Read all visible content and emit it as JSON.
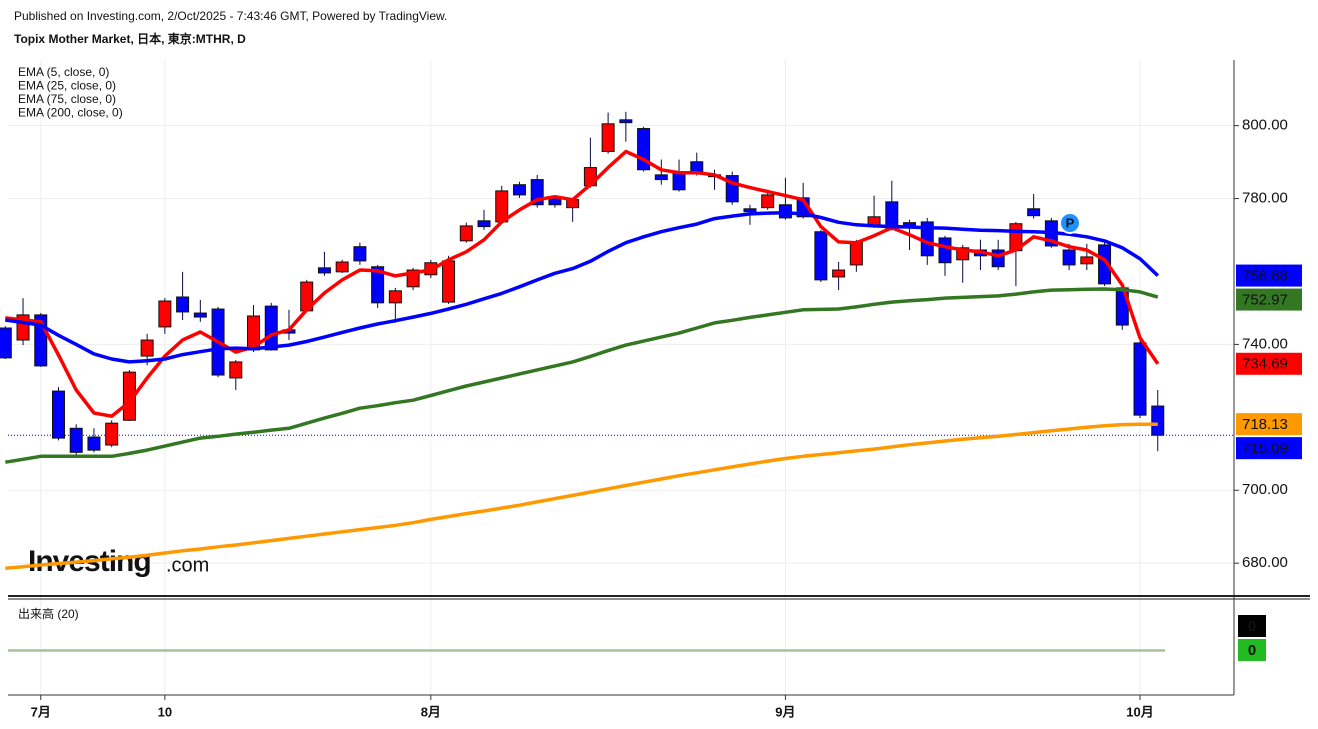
{
  "header": {
    "published": "Published on Investing.com, 2/Oct/2025 - 7:43:46 GMT, Powered by TradingView.",
    "symbol": "Topix Mother Market, 日本, 東京:MTHR, D"
  },
  "chart_data": {
    "type": "candlestick",
    "categories": [
      null,
      null,
      "7月",
      null,
      null,
      null,
      null,
      null,
      null,
      "10",
      null,
      null,
      null,
      null,
      null,
      null,
      null,
      null,
      null,
      null,
      null,
      null,
      null,
      null,
      "8月",
      null,
      null,
      null,
      null,
      null,
      null,
      null,
      null,
      null,
      null,
      null,
      null,
      null,
      null,
      null,
      null,
      null,
      null,
      null,
      "9月",
      null,
      null,
      null,
      null,
      null,
      null,
      null,
      null,
      null,
      null,
      null,
      null,
      null,
      null,
      null,
      null,
      null,
      null,
      null,
      "10月",
      null
    ],
    "open": [
      744.5,
      741.2,
      748.1,
      727.2,
      717.0,
      714.6,
      712.4,
      719.2,
      736.8,
      744.8,
      753.0,
      748.6,
      749.7,
      730.8,
      738.5,
      750.5,
      744.0,
      749.2,
      761.0,
      759.9,
      766.8,
      761.3,
      751.4,
      755.8,
      759.1,
      751.6,
      768.4,
      773.9,
      773.6,
      783.8,
      785.2,
      780.2,
      777.5,
      783.5,
      792.9,
      801.6,
      799.2,
      786.5,
      787.4,
      790.1,
      786.5,
      786.3,
      777.2,
      777.5,
      778.3,
      780.2,
      770.9,
      758.5,
      761.8,
      772.5,
      779.1,
      773.4,
      773.6,
      769.2,
      763.2,
      765.9,
      765.9,
      765.7,
      777.2,
      773.9,
      765.9,
      762.1,
      767.3,
      755.5,
      740.4,
      723.1
    ],
    "high": [
      745.0,
      752.7,
      748.6,
      728.3,
      718.1,
      717.0,
      719.2,
      733.0,
      742.9,
      752.7,
      759.9,
      752.2,
      750.3,
      735.7,
      750.8,
      751.4,
      749.5,
      757.7,
      765.4,
      763.2,
      767.9,
      761.8,
      755.5,
      761.0,
      763.2,
      764.3,
      773.4,
      776.9,
      783.5,
      784.6,
      786.5,
      780.8,
      780.2,
      796.7,
      803.6,
      803.8,
      799.7,
      790.7,
      790.7,
      792.6,
      787.9,
      787.4,
      778.3,
      782.4,
      785.7,
      784.3,
      771.4,
      762.6,
      768.7,
      780.8,
      784.9,
      774.2,
      774.7,
      769.8,
      767.3,
      768.7,
      768.7,
      773.6,
      781.3,
      774.7,
      767.6,
      767.6,
      768.1,
      756.3,
      741.2,
      727.5
    ],
    "low": [
      736.0,
      739.8,
      733.8,
      713.7,
      709.6,
      710.4,
      711.8,
      719.0,
      734.3,
      742.9,
      746.7,
      746.2,
      731.0,
      727.5,
      737.9,
      738.3,
      741.2,
      749.0,
      758.8,
      759.6,
      761.8,
      750.0,
      745.9,
      754.9,
      758.2,
      751.1,
      767.9,
      771.4,
      773.1,
      780.2,
      777.5,
      777.5,
      773.6,
      783.0,
      792.3,
      795.6,
      787.4,
      783.8,
      781.9,
      786.3,
      782.4,
      778.3,
      772.8,
      776.9,
      774.2,
      774.5,
      757.1,
      754.9,
      759.9,
      772.0,
      771.2,
      765.9,
      761.8,
      758.8,
      756.9,
      760.4,
      760.4,
      756.0,
      774.5,
      766.5,
      760.4,
      760.4,
      756.0,
      744.0,
      719.8,
      710.7
    ],
    "close": [
      736.3,
      748.1,
      734.1,
      714.3,
      710.4,
      711.0,
      718.4,
      732.4,
      741.2,
      751.9,
      748.9,
      747.5,
      731.6,
      735.2,
      747.8,
      738.5,
      743.1,
      757.1,
      759.6,
      762.6,
      762.9,
      751.4,
      754.7,
      760.4,
      762.4,
      762.9,
      772.5,
      772.3,
      782.1,
      781.0,
      778.3,
      778.3,
      779.7,
      788.5,
      800.5,
      800.8,
      787.9,
      785.2,
      782.4,
      787.4,
      786.0,
      779.1,
      776.4,
      781.0,
      774.7,
      775.0,
      757.7,
      760.4,
      768.1,
      775.0,
      771.7,
      772.5,
      764.3,
      762.4,
      766.5,
      764.3,
      761.3,
      773.1,
      775.3,
      767.0,
      761.8,
      764.0,
      756.6,
      745.3,
      720.6,
      715.09
    ],
    "up_color": "#ff0000",
    "down_color": "#0000ff",
    "last_price_color": "#0000ff",
    "series": [
      {
        "name": "EMA (5, close, 0)",
        "color": "#ff0000",
        "values": [
          747.3,
          746.7,
          746.2,
          737.1,
          727.5,
          721.2,
          720.3,
          724.2,
          730.8,
          736.8,
          741.2,
          743.4,
          740.7,
          737.9,
          739.3,
          742.6,
          744.0,
          749.5,
          754.1,
          757.7,
          760.4,
          760.2,
          758.8,
          759.6,
          760.4,
          763.2,
          765.4,
          768.7,
          773.6,
          776.9,
          779.7,
          780.5,
          779.7,
          783.8,
          788.5,
          792.9,
          790.7,
          787.9,
          787.1,
          787.1,
          786.5,
          784.3,
          783.0,
          781.9,
          780.8,
          779.7,
          772.3,
          768.1,
          767.9,
          769.8,
          772.0,
          770.1,
          767.9,
          766.8,
          765.9,
          765.4,
          764.3,
          765.9,
          769.5,
          768.4,
          766.8,
          765.9,
          763.2,
          756.3,
          741.8,
          734.69
        ]
      },
      {
        "name": "EMA (25, close, 0)",
        "color": "#0000ff",
        "values": [
          746.7,
          746.0,
          745.3,
          742.5,
          740.0,
          737.4,
          736.0,
          735.2,
          735.5,
          736.0,
          737.2,
          738.0,
          738.8,
          739.0,
          738.8,
          739.3,
          739.8,
          740.8,
          742.0,
          743.3,
          744.5,
          745.6,
          746.5,
          747.5,
          748.5,
          749.7,
          751.0,
          752.5,
          754.0,
          755.8,
          757.7,
          759.5,
          760.8,
          762.8,
          765.5,
          767.9,
          769.5,
          770.9,
          772.0,
          773.0,
          774.5,
          775.2,
          775.8,
          776.0,
          776.1,
          775.8,
          774.8,
          773.5,
          772.8,
          772.5,
          772.3,
          772.2,
          772.0,
          771.9,
          771.6,
          771.3,
          771.2,
          771.0,
          770.9,
          770.7,
          770.2,
          769.5,
          768.4,
          766.5,
          763.5,
          758.88
        ]
      },
      {
        "name": "EMA (75, close, 0)",
        "color": "#337722",
        "values": [
          707.7,
          708.5,
          709.3,
          709.3,
          709.3,
          709.3,
          709.3,
          710.1,
          711.0,
          712.1,
          713.2,
          714.3,
          714.8,
          715.4,
          715.9,
          716.5,
          717.0,
          718.4,
          719.8,
          721.1,
          722.5,
          723.2,
          724.0,
          724.7,
          726.0,
          727.3,
          728.6,
          729.7,
          730.8,
          731.9,
          733.0,
          734.1,
          735.2,
          736.7,
          738.3,
          739.8,
          740.9,
          742.0,
          743.1,
          744.5,
          745.9,
          746.6,
          747.4,
          748.1,
          748.8,
          749.5,
          749.6,
          749.7,
          750.3,
          751.0,
          751.6,
          752.0,
          752.3,
          752.7,
          752.9,
          753.1,
          753.3,
          753.8,
          754.4,
          754.9,
          755.0,
          755.1,
          755.2,
          755.0,
          754.4,
          752.97
        ]
      },
      {
        "name": "EMA (200, close, 0)",
        "color": "#ff9900",
        "values": [
          678.6,
          679.0,
          679.5,
          679.9,
          680.3,
          680.7,
          681.2,
          681.6,
          682.2,
          682.8,
          683.4,
          683.9,
          684.5,
          685.0,
          685.6,
          686.2,
          686.8,
          687.4,
          688.0,
          688.6,
          689.2,
          689.8,
          690.4,
          691.1,
          692.0,
          692.8,
          693.6,
          694.3,
          695.1,
          695.9,
          696.8,
          697.7,
          698.6,
          699.5,
          700.4,
          701.3,
          702.2,
          703.1,
          704.0,
          704.8,
          705.6,
          706.4,
          707.2,
          708.0,
          708.7,
          709.3,
          709.8,
          710.3,
          710.8,
          711.3,
          711.9,
          712.5,
          713.0,
          713.5,
          714.0,
          714.4,
          714.8,
          715.3,
          715.8,
          716.3,
          716.8,
          717.3,
          717.7,
          718.0,
          718.1,
          718.13
        ]
      }
    ],
    "ylim": [
      671,
      818
    ],
    "yticks": [
      {
        "value": 680,
        "label": "680.00"
      },
      {
        "value": 700,
        "label": "700.00"
      },
      {
        "value": 740,
        "label": "740.00"
      },
      {
        "value": 780,
        "label": "780.00"
      },
      {
        "value": 800,
        "label": "800.00"
      }
    ],
    "grid": true,
    "legend": "top-left",
    "marker": "P",
    "watermark": {
      "brand": "Investing",
      "suffix": ".com"
    },
    "volume_pane": {
      "title": "出来高 (20)",
      "volume": 0,
      "average": 0,
      "volume_color": "#000000",
      "average_color": "#22bb22"
    }
  }
}
